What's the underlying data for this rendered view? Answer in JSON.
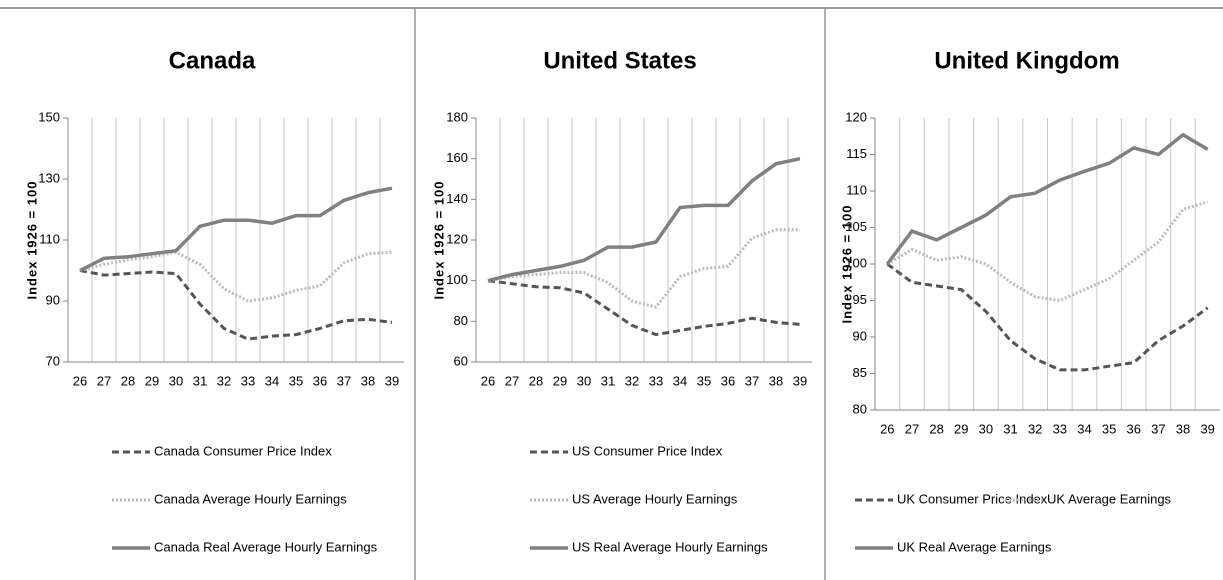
{
  "chart_data": [
    {
      "type": "line",
      "title": "Canada",
      "y_label": "Index 1926 = 100",
      "categories": [
        "26",
        "27",
        "28",
        "29",
        "30",
        "31",
        "32",
        "33",
        "34",
        "35",
        "36",
        "37",
        "38",
        "39"
      ],
      "ylim": [
        70,
        150
      ],
      "yticks": [
        70,
        90,
        110,
        130,
        150
      ],
      "series": [
        {
          "name": "Canada Consumer Price Index",
          "color": "#555555",
          "dash": "dashed",
          "values": [
            100,
            98.5,
            99,
            99.5,
            99,
            89,
            81,
            77.5,
            78.5,
            79,
            81,
            83.5,
            84,
            83
          ]
        },
        {
          "name": "Canada Average Hourly Earnings",
          "color": "#bbbbbb",
          "dash": "dotted",
          "values": [
            100,
            102,
            103.5,
            104.5,
            106,
            102,
            94,
            90,
            91,
            93.5,
            95,
            102.5,
            105.5,
            106
          ]
        },
        {
          "name": "Canada Real Average Hourly Earnings",
          "color": "#808080",
          "dash": "solid",
          "values": [
            100,
            104,
            104.5,
            105.5,
            106.5,
            114.5,
            116.5,
            116.5,
            115.5,
            118,
            118,
            123,
            125.5,
            127
          ]
        }
      ]
    },
    {
      "type": "line",
      "title": "United States",
      "y_label": "Index 1926 = 100",
      "categories": [
        "26",
        "27",
        "28",
        "29",
        "30",
        "31",
        "32",
        "33",
        "34",
        "35",
        "36",
        "37",
        "38",
        "39"
      ],
      "ylim": [
        60,
        180
      ],
      "yticks": [
        60,
        80,
        100,
        120,
        140,
        160,
        180
      ],
      "series": [
        {
          "name": "US Consumer Price Index",
          "color": "#555555",
          "dash": "dashed",
          "values": [
            100,
            98.5,
            97,
            96.5,
            94,
            86,
            78,
            73.5,
            75.5,
            77.5,
            79,
            81.5,
            79.5,
            78.5
          ]
        },
        {
          "name": "US Average Hourly Earnings",
          "color": "#bbbbbb",
          "dash": "dotted",
          "values": [
            100,
            102,
            103,
            104,
            104,
            99,
            90,
            87,
            102,
            106,
            107,
            121,
            125,
            125
          ]
        },
        {
          "name": "US Real Average Hourly Earnings",
          "color": "#808080",
          "dash": "solid",
          "values": [
            100,
            103,
            105,
            107,
            110,
            116.5,
            116.5,
            119,
            136,
            137,
            137,
            149,
            157.5,
            160
          ]
        }
      ]
    },
    {
      "type": "line",
      "title": "United Kingdom",
      "y_label": "Index 1926 = 100",
      "categories": [
        "26",
        "27",
        "28",
        "29",
        "30",
        "31",
        "32",
        "33",
        "34",
        "35",
        "36",
        "37",
        "38",
        "39"
      ],
      "ylim": [
        80,
        120
      ],
      "yticks": [
        80,
        85,
        90,
        95,
        100,
        105,
        110,
        115,
        120
      ],
      "series": [
        {
          "name": "UK Consumer Price Index",
          "color": "#555555",
          "dash": "dashed",
          "values": [
            100,
            97.5,
            97,
            96.5,
            93.5,
            89.5,
            87,
            85.5,
            85.5,
            86,
            86.5,
            89.5,
            91.5,
            94
          ]
        },
        {
          "name": "UK Average Earnings",
          "color": "#bbbbbb",
          "dash": "dotted",
          "values": [
            100,
            102,
            100.5,
            101,
            100,
            97.5,
            95.5,
            95,
            96.5,
            98,
            100.5,
            103,
            107.5,
            108.5
          ]
        },
        {
          "name": "UK Real Average Earnings",
          "color": "#808080",
          "dash": "solid",
          "values": [
            100,
            104.5,
            103.3,
            105,
            106.7,
            109.2,
            109.7,
            111.5,
            112.7,
            113.8,
            115.9,
            115,
            117.7,
            115.7
          ]
        }
      ]
    }
  ]
}
